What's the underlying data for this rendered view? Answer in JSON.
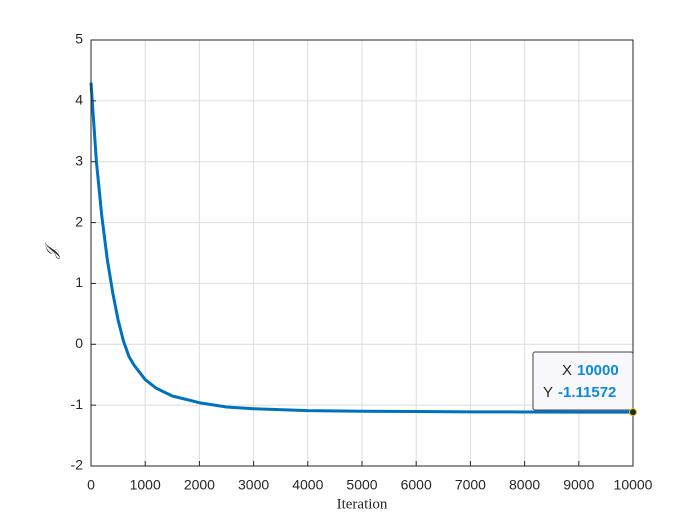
{
  "chart_data": {
    "type": "line",
    "xlabel": "Iteration",
    "ylabel": "𝒥",
    "x": [
      0,
      100,
      200,
      300,
      400,
      500,
      600,
      700,
      800,
      1000,
      1200,
      1500,
      2000,
      2500,
      3000,
      4000,
      5000,
      6000,
      7000,
      8000,
      9000,
      10000
    ],
    "series": [
      {
        "color": "#0072bd",
        "values": [
          4.3,
          3.0,
          2.1,
          1.4,
          0.85,
          0.4,
          0.05,
          -0.2,
          -0.35,
          -0.58,
          -0.72,
          -0.85,
          -0.96,
          -1.03,
          -1.06,
          -1.09,
          -1.1,
          -1.105,
          -1.11,
          -1.112,
          -1.114,
          -1.11572
        ]
      }
    ],
    "xlim": [
      0,
      10000
    ],
    "xticks": [
      0,
      1000,
      2000,
      3000,
      4000,
      5000,
      6000,
      7000,
      8000,
      9000,
      10000
    ],
    "ylim": [
      -2,
      5
    ],
    "yticks": [
      -2,
      -1,
      0,
      1,
      2,
      3,
      4,
      5
    ],
    "grid": true,
    "datatip": {
      "x_label": "X",
      "x": 10000,
      "y_label": "Y",
      "y": -1.11572
    }
  }
}
